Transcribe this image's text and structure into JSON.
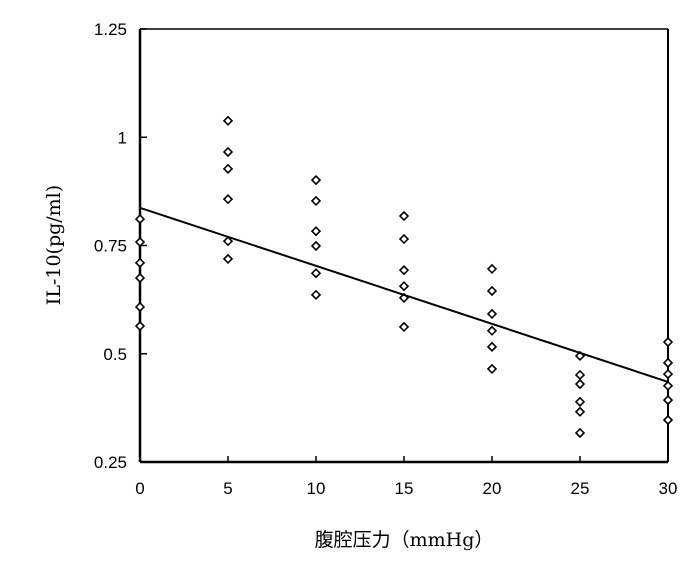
{
  "chart_data": {
    "type": "scatter",
    "title": "",
    "xlabel": "腹腔压力（mmHg）",
    "ylabel": "IL-10(pg/ml)",
    "xlim": [
      0,
      30
    ],
    "ylim": [
      0.25,
      1.25
    ],
    "xticks": [
      "0",
      "5",
      "10",
      "15",
      "20",
      "25",
      "30"
    ],
    "yticks": [
      "0.25",
      "0.5",
      "0.75",
      "1",
      "1.25"
    ],
    "grid": false,
    "series": [
      {
        "name": "IL-10",
        "marker": "diamond",
        "points": [
          [
            0,
            0.811
          ],
          [
            0,
            0.758
          ],
          [
            0,
            0.71
          ],
          [
            0,
            0.675
          ],
          [
            0,
            0.608
          ],
          [
            0,
            0.564
          ],
          [
            5,
            1.038
          ],
          [
            5,
            0.966
          ],
          [
            5,
            0.927
          ],
          [
            5,
            0.857
          ],
          [
            5,
            0.76
          ],
          [
            5,
            0.719
          ],
          [
            10,
            0.901
          ],
          [
            10,
            0.853
          ],
          [
            10,
            0.783
          ],
          [
            10,
            0.749
          ],
          [
            10,
            0.686
          ],
          [
            10,
            0.636
          ],
          [
            15,
            0.818
          ],
          [
            15,
            0.765
          ],
          [
            15,
            0.693
          ],
          [
            15,
            0.656
          ],
          [
            15,
            0.629
          ],
          [
            15,
            0.562
          ],
          [
            20,
            0.696
          ],
          [
            20,
            0.645
          ],
          [
            20,
            0.592
          ],
          [
            20,
            0.553
          ],
          [
            20,
            0.516
          ],
          [
            20,
            0.465
          ],
          [
            25,
            0.495
          ],
          [
            25,
            0.451
          ],
          [
            25,
            0.43
          ],
          [
            25,
            0.389
          ],
          [
            25,
            0.366
          ],
          [
            25,
            0.317
          ],
          [
            30,
            0.527
          ],
          [
            30,
            0.479
          ],
          [
            30,
            0.453
          ],
          [
            30,
            0.426
          ],
          [
            30,
            0.393
          ],
          [
            30,
            0.347
          ]
        ]
      }
    ],
    "trendline": {
      "type": "linear",
      "intercept": 0.837,
      "slope": -0.0134
    }
  }
}
